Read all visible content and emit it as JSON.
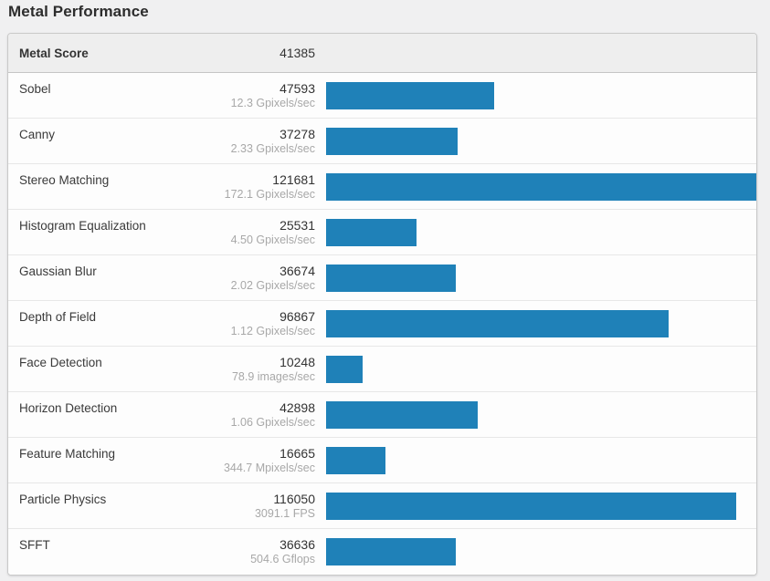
{
  "page": {
    "title": "Metal Performance"
  },
  "summary": {
    "label": "Metal Score",
    "value": "41385"
  },
  "colors": {
    "bar": "#1f81b8",
    "page_background": "#f0f0f1",
    "card_background": "#fdfdfd",
    "header_background": "#eeeeee",
    "sublabel_text": "#a8a8a8"
  },
  "chart_data": {
    "type": "bar",
    "title": "Metal Performance",
    "orientation": "horizontal",
    "summary_score_label": "Metal Score",
    "summary_score": 41385,
    "bar_scale_max": 121681,
    "legend_position": "none",
    "grid": false,
    "categories": [
      "Sobel",
      "Canny",
      "Stereo Matching",
      "Histogram Equalization",
      "Gaussian Blur",
      "Depth of Field",
      "Face Detection",
      "Horizon Detection",
      "Feature Matching",
      "Particle Physics",
      "SFFT"
    ],
    "values": [
      47593,
      37278,
      121681,
      25531,
      36674,
      96867,
      10248,
      42898,
      16665,
      116050,
      36636
    ],
    "rows": [
      {
        "label": "Sobel",
        "score": 47593,
        "rate": "12.3 Gpixels/sec"
      },
      {
        "label": "Canny",
        "score": 37278,
        "rate": "2.33 Gpixels/sec"
      },
      {
        "label": "Stereo Matching",
        "score": 121681,
        "rate": "172.1 Gpixels/sec"
      },
      {
        "label": "Histogram Equalization",
        "score": 25531,
        "rate": "4.50 Gpixels/sec"
      },
      {
        "label": "Gaussian Blur",
        "score": 36674,
        "rate": "2.02 Gpixels/sec"
      },
      {
        "label": "Depth of Field",
        "score": 96867,
        "rate": "1.12 Gpixels/sec"
      },
      {
        "label": "Face Detection",
        "score": 10248,
        "rate": "78.9 images/sec"
      },
      {
        "label": "Horizon Detection",
        "score": 42898,
        "rate": "1.06 Gpixels/sec"
      },
      {
        "label": "Feature Matching",
        "score": 16665,
        "rate": "344.7 Mpixels/sec"
      },
      {
        "label": "Particle Physics",
        "score": 116050,
        "rate": "3091.1 FPS"
      },
      {
        "label": "SFFT",
        "score": 36636,
        "rate": "504.6 Gflops"
      }
    ]
  }
}
